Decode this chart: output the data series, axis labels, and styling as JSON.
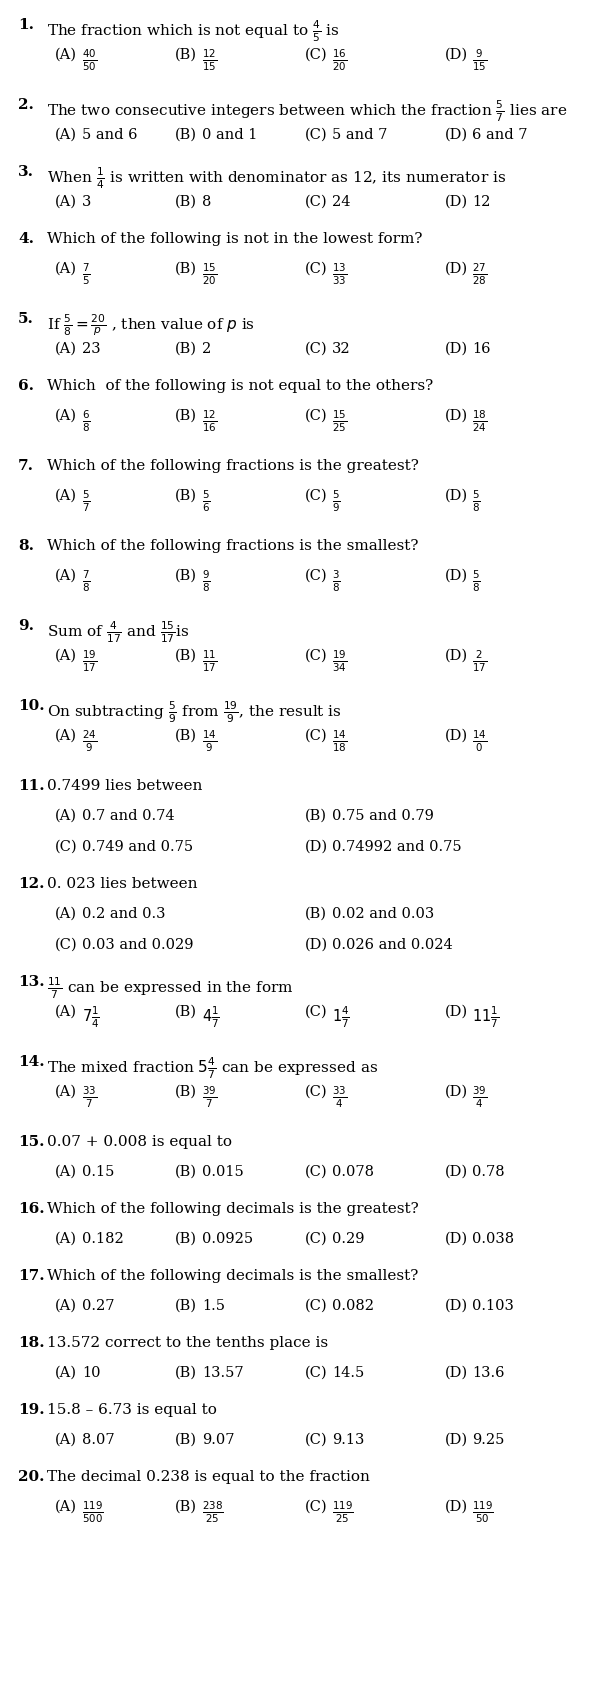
{
  "background": "#ffffff",
  "questions": [
    {
      "num": "1.",
      "text": "The fraction which is not equal to $\\frac{4}{5}$ is",
      "options": [
        "$\\frac{40}{50}$",
        "$\\frac{12}{15}$",
        "$\\frac{16}{20}$",
        "$\\frac{9}{15}$"
      ],
      "has_fracs": true,
      "two_col": false
    },
    {
      "num": "2.",
      "text": "The two consecutive integers between which the fraction $\\frac{5}{7}$ lies are",
      "options": [
        "5 and 6",
        "0 and 1",
        "5 and 7",
        "6 and 7"
      ],
      "has_fracs": false,
      "two_col": false
    },
    {
      "num": "3.",
      "text": "When $\\frac{1}{4}$ is written with denominator as 12, its numerator is",
      "options": [
        "3",
        "8",
        "24",
        "12"
      ],
      "has_fracs": false,
      "two_col": false
    },
    {
      "num": "4.",
      "text": "Which of the following is not in the lowest form?",
      "options": [
        "$\\frac{7}{5}$",
        "$\\frac{15}{20}$",
        "$\\frac{13}{33}$",
        "$\\frac{27}{28}$"
      ],
      "has_fracs": true,
      "two_col": false
    },
    {
      "num": "5.",
      "text": "If $\\frac{5}{8}=\\frac{20}{p}$ , then value of $p$ is",
      "options": [
        "23",
        "2",
        "32",
        "16"
      ],
      "has_fracs": false,
      "two_col": false
    },
    {
      "num": "6.",
      "text": "Which  of the following is not equal to the others?",
      "options": [
        "$\\frac{6}{8}$",
        "$\\frac{12}{16}$",
        "$\\frac{15}{25}$",
        "$\\frac{18}{24}$"
      ],
      "has_fracs": true,
      "two_col": false
    },
    {
      "num": "7.",
      "text": "Which of the following fractions is the greatest?",
      "options": [
        "$\\frac{5}{7}$",
        "$\\frac{5}{6}$",
        "$\\frac{5}{9}$",
        "$\\frac{5}{8}$"
      ],
      "has_fracs": true,
      "two_col": false
    },
    {
      "num": "8.",
      "text": "Which of the following fractions is the smallest?",
      "options": [
        "$\\frac{7}{8}$",
        "$\\frac{9}{8}$",
        "$\\frac{3}{8}$",
        "$\\frac{5}{8}$"
      ],
      "has_fracs": true,
      "two_col": false
    },
    {
      "num": "9.",
      "text": "Sum of $\\frac{4}{17}$ and $\\frac{15}{17}$is",
      "options": [
        "$\\frac{19}{17}$",
        "$\\frac{11}{17}$",
        "$\\frac{19}{34}$",
        "$\\frac{2}{17}$"
      ],
      "has_fracs": true,
      "two_col": false
    },
    {
      "num": "10.",
      "text": "On subtracting $\\frac{5}{9}$ from $\\frac{19}{9}$, the result is",
      "options": [
        "$\\frac{24}{9}$",
        "$\\frac{14}{9}$",
        "$\\frac{14}{18}$",
        "$\\frac{14}{0}$"
      ],
      "has_fracs": true,
      "two_col": false
    },
    {
      "num": "11.",
      "text": "0.7499 lies between",
      "options": [
        "0.7 and 0.74",
        "0.75 and 0.79",
        "0.749 and 0.75",
        "0.74992 and 0.75"
      ],
      "has_fracs": false,
      "two_col": true
    },
    {
      "num": "12.",
      "text": "0. 023 lies between",
      "options": [
        "0.2 and 0.3",
        "0.02 and 0.03",
        "0.03 and 0.029",
        "0.026 and 0.024"
      ],
      "has_fracs": false,
      "two_col": true
    },
    {
      "num": "13.",
      "text": "$\\frac{11}{7}$ can be expressed in the form",
      "options": [
        "$7\\frac{1}{4}$",
        "$4\\frac{1}{7}$",
        "$1\\frac{4}{7}$",
        "$11\\frac{1}{7}$"
      ],
      "has_fracs": true,
      "two_col": false
    },
    {
      "num": "14.",
      "text": "The mixed fraction $5\\frac{4}{7}$ can be expressed as",
      "options": [
        "$\\frac{33}{7}$",
        "$\\frac{39}{7}$",
        "$\\frac{33}{4}$",
        "$\\frac{39}{4}$"
      ],
      "has_fracs": true,
      "two_col": false
    },
    {
      "num": "15.",
      "text": "0.07 + 0.008 is equal to",
      "options": [
        "0.15",
        "0.015",
        "0.078",
        "0.78"
      ],
      "has_fracs": false,
      "two_col": false
    },
    {
      "num": "16.",
      "text": "Which of the following decimals is the greatest?",
      "options": [
        "0.182",
        "0.0925",
        "0.29",
        "0.038"
      ],
      "has_fracs": false,
      "two_col": false
    },
    {
      "num": "17.",
      "text": "Which of the following decimals is the smallest?",
      "options": [
        "0.27",
        "1.5",
        "0.082",
        "0.103"
      ],
      "has_fracs": false,
      "two_col": false
    },
    {
      "num": "18.",
      "text": "13.572 correct to the tenths place is",
      "options": [
        "10",
        "13.57",
        "14.5",
        "13.6"
      ],
      "has_fracs": false,
      "two_col": false
    },
    {
      "num": "19.",
      "text": "15.8 – 6.73 is equal to",
      "options": [
        "8.07",
        "9.07",
        "9.13",
        "9.25"
      ],
      "has_fracs": false,
      "two_col": false
    },
    {
      "num": "20.",
      "text": "The decimal 0.238 is equal to the fraction",
      "options": [
        "$\\frac{119}{500}$",
        "$\\frac{238}{25}$",
        "$\\frac{119}{25}$",
        "$\\frac{119}{50}$"
      ],
      "has_fracs": true,
      "two_col": false
    }
  ],
  "labels": [
    "(A)",
    "(B)",
    "(C)",
    "(D)"
  ]
}
